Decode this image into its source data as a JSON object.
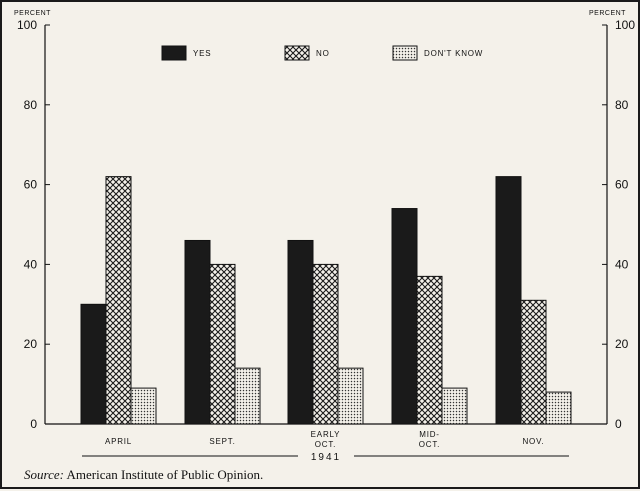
{
  "source": {
    "label": "Source:",
    "text": "American Institute of Public Opinion."
  },
  "chart_data": {
    "type": "bar",
    "title": "",
    "xlabel": "1941",
    "ylabel": "PERCENT",
    "ylabel_right": "PERCENT",
    "ylim": [
      0,
      100
    ],
    "yticks": [
      0,
      20,
      40,
      60,
      80,
      100
    ],
    "categories": [
      [
        "APRIL"
      ],
      [
        "SEPT."
      ],
      [
        "EARLY",
        "OCT."
      ],
      [
        "MID-",
        "OCT."
      ],
      [
        "NOV."
      ]
    ],
    "series": [
      {
        "name": "YES",
        "values": [
          30,
          46,
          46,
          54,
          62
        ],
        "fill": "solid",
        "color": "#1a1a1a"
      },
      {
        "name": "NO",
        "values": [
          62,
          40,
          40,
          37,
          31
        ],
        "fill": "crosshatch",
        "color": "#1a1a1a"
      },
      {
        "name": "DON'T KNOW",
        "values": [
          9,
          14,
          14,
          9,
          8
        ],
        "fill": "stipple",
        "color": "#555555"
      }
    ],
    "legend": "top-center",
    "grid": false
  }
}
